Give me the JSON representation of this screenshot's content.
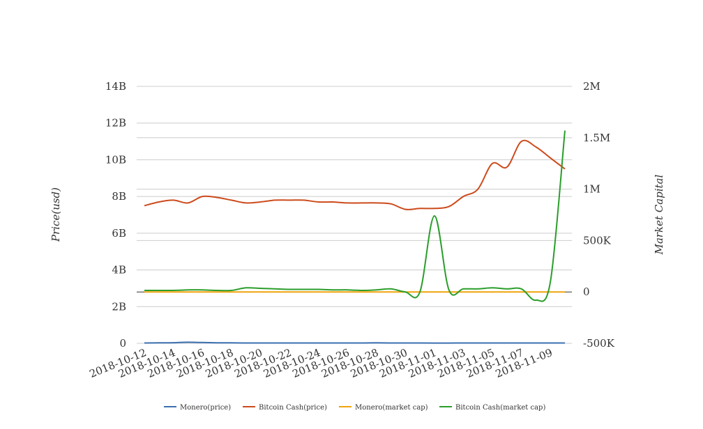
{
  "chart_data": {
    "type": "line",
    "x": [
      "2018-10-12",
      "2018-10-13",
      "2018-10-14",
      "2018-10-15",
      "2018-10-16",
      "2018-10-17",
      "2018-10-18",
      "2018-10-19",
      "2018-10-20",
      "2018-10-21",
      "2018-10-22",
      "2018-10-23",
      "2018-10-24",
      "2018-10-25",
      "2018-10-26",
      "2018-10-27",
      "2018-10-28",
      "2018-10-29",
      "2018-10-30",
      "2018-10-31",
      "2018-11-01",
      "2018-11-02",
      "2018-11-03",
      "2018-11-04",
      "2018-11-05",
      "2018-11-06",
      "2018-11-07",
      "2018-11-08",
      "2018-11-09",
      "2018-11-10"
    ],
    "x_tick_labels": [
      "2018-10-12",
      "2018-10-14",
      "2018-10-16",
      "2018-10-18",
      "2018-10-20",
      "2018-10-22",
      "2018-10-24",
      "2018-10-26",
      "2018-10-28",
      "2018-10-30",
      "2018-11-01",
      "2018-11-03",
      "2018-11-05",
      "2018-11-07",
      "2018-11-09"
    ],
    "y_left": {
      "label": "Price(usd)",
      "ticks": [
        "0",
        "2B",
        "4B",
        "6B",
        "8B",
        "10B",
        "12B",
        "14B"
      ],
      "range": [
        0,
        14000000000
      ]
    },
    "y_right": {
      "label": "Market Capital",
      "ticks": [
        "-500K",
        "0",
        "500K",
        "1M",
        "1.5M",
        "2M"
      ],
      "range": [
        -500000,
        2000000
      ]
    },
    "grid": true,
    "legend_position": "bottom",
    "series": [
      {
        "name": "Monero(price)",
        "axis": "left",
        "color": "#3a6fb0",
        "values": [
          20000000,
          25000000,
          35000000,
          60000000,
          45000000,
          30000000,
          25000000,
          20000000,
          20000000,
          20000000,
          20000000,
          20000000,
          20000000,
          20000000,
          20000000,
          20000000,
          25000000,
          20000000,
          20000000,
          20000000,
          15000000,
          15000000,
          20000000,
          20000000,
          20000000,
          20000000,
          20000000,
          20000000,
          20000000,
          20000000
        ]
      },
      {
        "name": "Bitcoin Cash(price)",
        "axis": "left",
        "color": "#cc4a1b",
        "values": [
          7500000000,
          7700000000,
          7800000000,
          7650000000,
          8000000000,
          7950000000,
          7800000000,
          7650000000,
          7700000000,
          7800000000,
          7800000000,
          7800000000,
          7700000000,
          7700000000,
          7650000000,
          7650000000,
          7650000000,
          7600000000,
          7300000000,
          7350000000,
          7350000000,
          7450000000,
          8000000000,
          8400000000,
          9800000000,
          9600000000,
          11000000000,
          10700000000,
          10100000000,
          9500000000
        ]
      },
      {
        "name": "Monero(market cap)",
        "axis": "right",
        "color": "#f0a30a",
        "values": [
          0,
          0,
          0,
          0,
          0,
          0,
          0,
          0,
          0,
          0,
          0,
          0,
          0,
          0,
          0,
          0,
          0,
          0,
          0,
          0,
          0,
          0,
          0,
          0,
          0,
          0,
          0,
          0,
          0,
          0
        ]
      },
      {
        "name": "Bitcoin Cash(market cap)",
        "axis": "right",
        "color": "#2a9d2a",
        "values": [
          15000,
          15000,
          15000,
          20000,
          20000,
          15000,
          15000,
          40000,
          35000,
          30000,
          25000,
          25000,
          25000,
          20000,
          20000,
          15000,
          20000,
          30000,
          0,
          0,
          740000,
          20000,
          30000,
          30000,
          40000,
          30000,
          30000,
          -80000,
          100000,
          1570000
        ]
      }
    ]
  }
}
